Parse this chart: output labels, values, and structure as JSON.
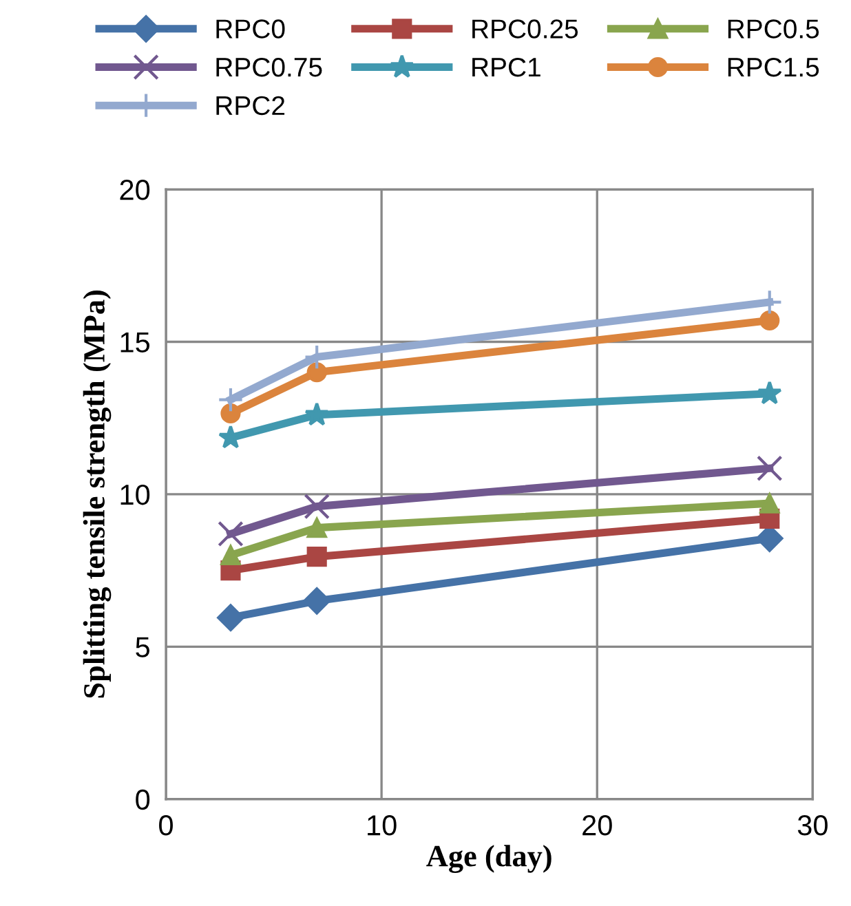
{
  "chart_data": {
    "type": "line",
    "xlabel": "Age (day)",
    "ylabel": "Splitting tensile strength (MPa)",
    "x": [
      3,
      7,
      28
    ],
    "xlim": [
      0,
      30
    ],
    "xticks": [
      0,
      10,
      20,
      30
    ],
    "ylim": [
      0,
      20
    ],
    "yticks": [
      0,
      5,
      10,
      15,
      20
    ],
    "grid": true,
    "legend": "top",
    "line_style": "solid",
    "series": [
      {
        "name": "RPC0",
        "color": "#4572a7",
        "marker": "diamond",
        "values": [
          5.95,
          6.5,
          8.55
        ]
      },
      {
        "name": "RPC0.25",
        "color": "#aa4643",
        "marker": "square",
        "values": [
          7.5,
          7.95,
          9.2
        ]
      },
      {
        "name": "RPC0.5",
        "color": "#89a54e",
        "marker": "triangle",
        "values": [
          8.0,
          8.9,
          9.7
        ]
      },
      {
        "name": "RPC0.75",
        "color": "#71588f",
        "marker": "cross",
        "values": [
          8.7,
          9.6,
          10.85
        ]
      },
      {
        "name": "RPC1",
        "color": "#4198af",
        "marker": "star",
        "values": [
          11.85,
          12.6,
          13.3
        ]
      },
      {
        "name": "RPC1.5",
        "color": "#db843d",
        "marker": "circle",
        "values": [
          12.65,
          14.0,
          15.7
        ]
      },
      {
        "name": "RPC2",
        "color": "#93a9cf",
        "marker": "plus",
        "values": [
          13.1,
          14.5,
          16.3
        ]
      }
    ]
  }
}
